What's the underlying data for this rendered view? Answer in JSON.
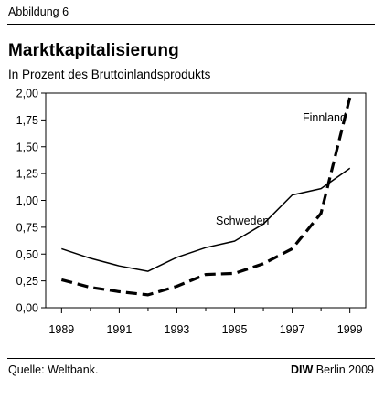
{
  "figure_label": "Abbildung 6",
  "source": "Quelle: Weltbank.",
  "credit": {
    "brand": "DIW",
    "text": "Berlin 2009"
  },
  "chart_data": {
    "type": "line",
    "title": "Marktkapitalisierung",
    "subtitle": "In Prozent des Bruttoinlandsprodukts",
    "xlabel": "",
    "ylabel": "",
    "x": [
      1989,
      1990,
      1991,
      1992,
      1993,
      1994,
      1995,
      1996,
      1997,
      1998,
      1999
    ],
    "xlim": [
      1988.45,
      1999.55
    ],
    "ylim": [
      0,
      2
    ],
    "x_ticks": [
      1989,
      1991,
      1993,
      1995,
      1997,
      1999
    ],
    "y_ticks": [
      {
        "value": 0,
        "label": "0,00"
      },
      {
        "value": 0.25,
        "label": "0,25"
      },
      {
        "value": 0.5,
        "label": "0,50"
      },
      {
        "value": 0.75,
        "label": "0,75"
      },
      {
        "value": 1.0,
        "label": "1,00"
      },
      {
        "value": 1.25,
        "label": "1,25"
      },
      {
        "value": 1.5,
        "label": "1,50"
      },
      {
        "value": 1.75,
        "label": "1,75"
      },
      {
        "value": 2.0,
        "label": "2,00"
      }
    ],
    "grid": false,
    "series": [
      {
        "name": "Schweden",
        "style": "solid",
        "color": "#000000",
        "values": [
          0.55,
          0.46,
          0.39,
          0.34,
          0.47,
          0.56,
          0.62,
          0.78,
          1.05,
          1.11,
          1.3
        ]
      },
      {
        "name": "Finnland",
        "style": "dashed",
        "color": "#000000",
        "values": [
          0.26,
          0.19,
          0.15,
          0.12,
          0.2,
          0.31,
          0.32,
          0.41,
          0.55,
          0.88,
          1.96
        ]
      }
    ]
  }
}
